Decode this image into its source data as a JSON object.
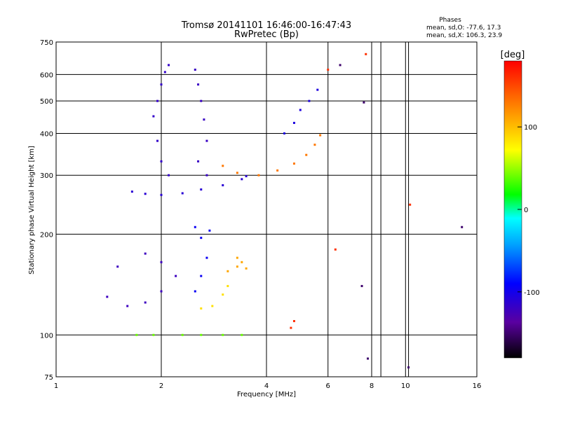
{
  "chart_data": {
    "type": "scatter",
    "title": "Tromsø 20141101 16:46:00-16:47:43",
    "subtitle": "RwPretec (Bp)",
    "xlabel": "Frequency [MHz]",
    "ylabel": "Stationary phase Virtual Height [km]",
    "x_scale": "log",
    "y_scale": "log",
    "xlim": [
      1,
      16
    ],
    "ylim": [
      75,
      750
    ],
    "x_ticks": [
      1,
      2,
      4,
      6,
      8,
      10,
      16
    ],
    "y_ticks": [
      75,
      100,
      200,
      300,
      400,
      500,
      600,
      750
    ],
    "grid": true,
    "stats": {
      "heading": "Phases",
      "line_o": "mean, sd,O: -77.6, 17.3",
      "line_x": "mean, sd,X: 106.3, 23.9"
    },
    "colorbar": {
      "label": "[deg]",
      "range": [
        -180,
        180
      ],
      "ticks": [
        "100",
        "0",
        "-100"
      ],
      "tick_values": [
        100,
        0,
        -100
      ]
    },
    "series": [
      {
        "phase": -110,
        "points": [
          [
            1.65,
            268
          ],
          [
            1.8,
            264
          ],
          [
            2.0,
            262
          ],
          [
            2.3,
            265
          ],
          [
            2.6,
            272
          ],
          [
            3.0,
            280
          ],
          [
            3.4,
            292
          ],
          [
            3.5,
            298
          ]
        ]
      },
      {
        "phase": -115,
        "points": [
          [
            1.9,
            450
          ],
          [
            1.95,
            500
          ],
          [
            2.0,
            560
          ],
          [
            2.05,
            610
          ],
          [
            2.1,
            640
          ],
          [
            1.95,
            380
          ],
          [
            2.0,
            330
          ],
          [
            2.1,
            300
          ]
        ]
      },
      {
        "phase": -118,
        "points": [
          [
            2.5,
            620
          ],
          [
            2.55,
            560
          ],
          [
            2.6,
            500
          ],
          [
            2.65,
            440
          ],
          [
            2.7,
            380
          ],
          [
            2.55,
            330
          ],
          [
            2.7,
            300
          ]
        ]
      },
      {
        "phase": 130,
        "points": [
          [
            3.0,
            320
          ],
          [
            3.3,
            305
          ],
          [
            3.8,
            300
          ],
          [
            4.3,
            310
          ],
          [
            4.8,
            325
          ],
          [
            5.2,
            345
          ],
          [
            5.5,
            370
          ],
          [
            5.7,
            395
          ]
        ]
      },
      {
        "phase": -120,
        "points": [
          [
            1.4,
            130
          ],
          [
            1.6,
            122
          ],
          [
            1.8,
            125
          ],
          [
            2.0,
            135
          ],
          [
            2.2,
            150
          ],
          [
            2.0,
            165
          ],
          [
            1.8,
            175
          ],
          [
            1.5,
            160
          ]
        ]
      },
      {
        "phase": -95,
        "points": [
          [
            2.5,
            135
          ],
          [
            2.6,
            150
          ],
          [
            2.7,
            170
          ],
          [
            2.6,
            195
          ],
          [
            2.5,
            210
          ],
          [
            2.75,
            205
          ]
        ]
      },
      {
        "phase": 85,
        "points": [
          [
            2.6,
            120
          ],
          [
            2.8,
            122
          ],
          [
            3.0,
            132
          ],
          [
            3.1,
            140
          ]
        ]
      },
      {
        "phase": 110,
        "points": [
          [
            3.1,
            155
          ],
          [
            3.3,
            160
          ],
          [
            3.4,
            165
          ],
          [
            3.5,
            158
          ],
          [
            3.3,
            170
          ]
        ]
      },
      {
        "phase": -105,
        "points": [
          [
            4.5,
            400
          ],
          [
            4.8,
            430
          ],
          [
            5.0,
            470
          ],
          [
            5.3,
            500
          ],
          [
            5.6,
            540
          ]
        ]
      },
      {
        "phase": 160,
        "points": [
          [
            4.7,
            105
          ],
          [
            4.8,
            110
          ],
          [
            6.3,
            180
          ],
          [
            10.3,
            245
          ],
          [
            6.0,
            620
          ],
          [
            7.7,
            690
          ]
        ]
      },
      {
        "phase": -150,
        "points": [
          [
            6.5,
            640
          ],
          [
            7.6,
            495
          ],
          [
            7.5,
            140
          ],
          [
            7.8,
            85
          ],
          [
            10.2,
            80
          ],
          [
            14.5,
            210
          ]
        ]
      },
      {
        "phase": 40,
        "points": [
          [
            1.9,
            100
          ],
          [
            2.3,
            100
          ],
          [
            2.6,
            100
          ],
          [
            3.0,
            100
          ],
          [
            3.4,
            100
          ],
          [
            1.7,
            100
          ]
        ]
      }
    ]
  }
}
